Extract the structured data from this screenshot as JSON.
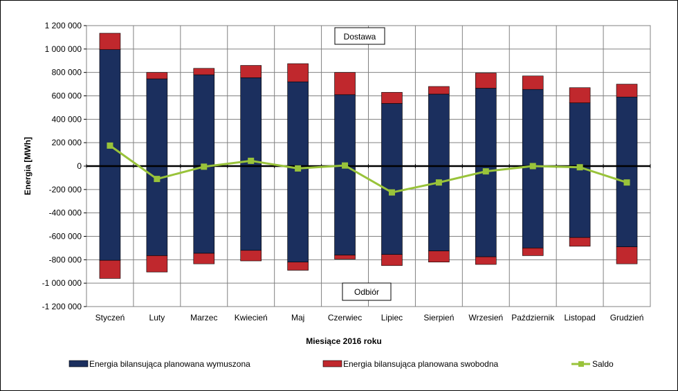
{
  "chart_data": {
    "type": "bar",
    "title": "",
    "xlabel": "Miesiące 2016  roku",
    "ylabel": "Energia [MWh]",
    "ylim": [
      -1200000,
      1200000
    ],
    "yticks": [
      1200000,
      1000000,
      800000,
      600000,
      400000,
      200000,
      0,
      -200000,
      -400000,
      -600000,
      -800000,
      -1000000,
      -1200000
    ],
    "ytick_labels": [
      "1 200 000",
      "1 000 000",
      "800 000",
      "600 000",
      "400 000",
      "200 000",
      "0",
      "-200 000",
      "-400 000",
      "-600 000",
      "-800 000",
      "-1 000 000",
      "-1 200 000"
    ],
    "categories": [
      "Styczeń",
      "Luty",
      "Marzec",
      "Kwiecień",
      "Maj",
      "Czerwiec",
      "Lipiec",
      "Sierpień",
      "Wrzesień",
      "Październik",
      "Listopad",
      "Grudzień"
    ],
    "series": [
      {
        "name": "Energia bilansująca planowana wymuszona",
        "color": "#1b2f5e",
        "supply": [
          995000,
          745000,
          780000,
          755000,
          720000,
          610000,
          535000,
          615000,
          665000,
          655000,
          540000,
          590000
        ],
        "withdrawal": [
          -805000,
          -765000,
          -745000,
          -720000,
          -820000,
          -760000,
          -755000,
          -725000,
          -775000,
          -700000,
          -610000,
          -690000
        ]
      },
      {
        "name": "Energia bilansująca planowana swobodna",
        "color": "#c0282d",
        "supply": [
          140000,
          55000,
          55000,
          105000,
          155000,
          190000,
          95000,
          65000,
          130000,
          115000,
          130000,
          110000
        ],
        "withdrawal": [
          -155000,
          -140000,
          -90000,
          -90000,
          -70000,
          -35000,
          -95000,
          -95000,
          -65000,
          -65000,
          -75000,
          -145000
        ]
      },
      {
        "name": "Saldo",
        "color": "#99c33a",
        "type": "line",
        "values": [
          175000,
          -110000,
          -5000,
          45000,
          -20000,
          5000,
          -225000,
          -140000,
          -45000,
          0,
          -10000,
          -140000
        ]
      }
    ],
    "annotations": [
      {
        "text": "Dostawa"
      },
      {
        "text": "Odbiór"
      }
    ],
    "grid": true,
    "legend_position": "bottom"
  }
}
